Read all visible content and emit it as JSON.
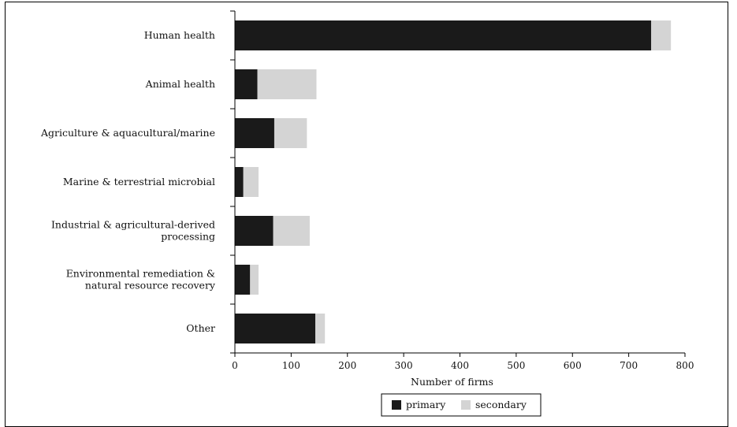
{
  "chart_data": {
    "type": "bar",
    "orientation": "horizontal",
    "stacked": true,
    "title": "",
    "xlabel": "Number of firms",
    "ylabel": "",
    "xlim": [
      0,
      800
    ],
    "x_ticks": [
      0,
      100,
      200,
      300,
      400,
      500,
      600,
      700,
      800
    ],
    "categories": [
      [
        "Human health"
      ],
      [
        "Animal health"
      ],
      [
        "Agriculture & aquacultural/marine"
      ],
      [
        "Marine & terrestrial microbial"
      ],
      [
        "Industrial & agricultural-derived",
        "processing"
      ],
      [
        "Environmental remediation &",
        "natural resource recovery"
      ],
      [
        "Other"
      ]
    ],
    "series": [
      {
        "name": "primary",
        "color": "#1a1a1a",
        "values": [
          740,
          40,
          70,
          15,
          68,
          27,
          143
        ]
      },
      {
        "name": "secondary",
        "color": "#d4d4d4",
        "values": [
          35,
          105,
          58,
          27,
          65,
          15,
          17
        ]
      }
    ],
    "grid": false,
    "legend": {
      "position": "bottom-center"
    }
  }
}
